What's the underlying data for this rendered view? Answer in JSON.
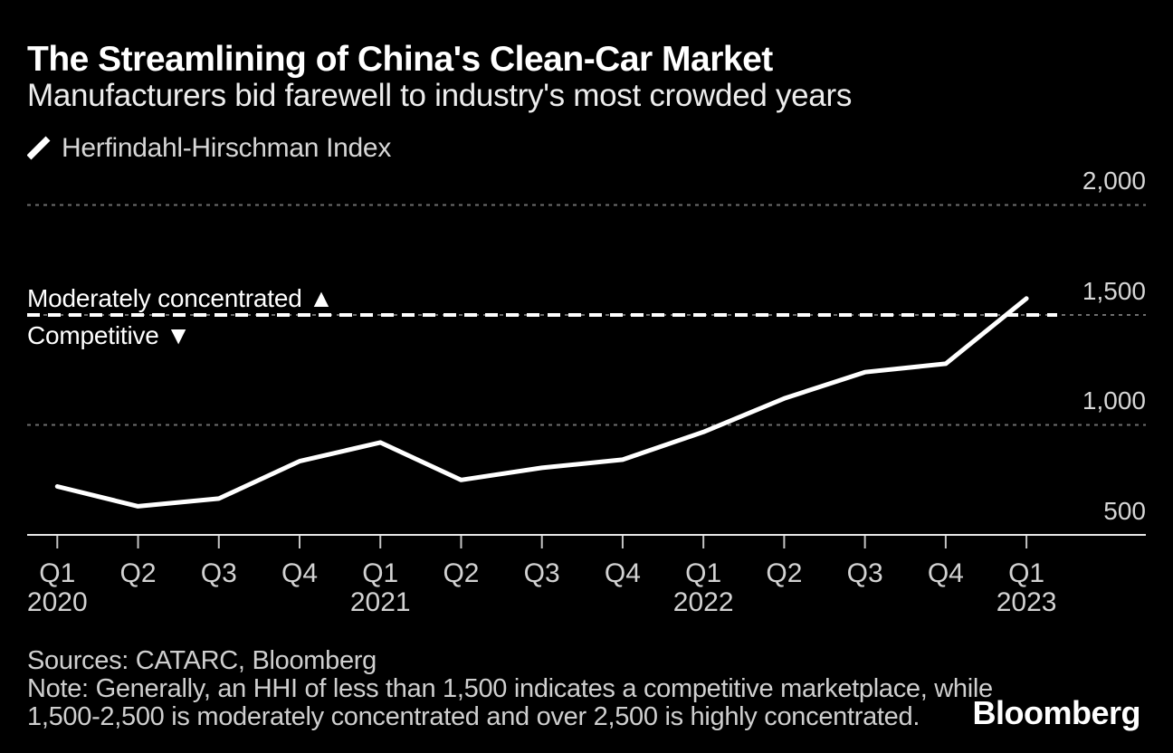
{
  "header": {
    "title": "The Streamlining of China's Clean-Car Market",
    "subtitle": "Manufacturers bid farewell to industry's most crowded years"
  },
  "legend": {
    "marker_icon": "white-diagonal-line-swatch",
    "label": "Herfindahl-Hirschman Index"
  },
  "annotations": {
    "above_threshold": "Moderately concentrated ▲",
    "below_threshold": "Competitive ▼"
  },
  "chart_data": {
    "type": "line",
    "title": "The Streamlining of China's Clean-Car Market",
    "subtitle": "Manufacturers bid farewell to industry's most crowded years",
    "xlabel": "",
    "ylabel": "Herfindahl-Hirschman Index",
    "categories": [
      "Q1 2020",
      "Q2 2020",
      "Q3 2020",
      "Q4 2020",
      "Q1 2021",
      "Q2 2021",
      "Q3 2021",
      "Q4 2021",
      "Q1 2022",
      "Q2 2022",
      "Q3 2022",
      "Q4 2022",
      "Q1 2023"
    ],
    "x_tick_labels": [
      "Q1",
      "Q2",
      "Q3",
      "Q4",
      "Q1",
      "Q2",
      "Q3",
      "Q4",
      "Q1",
      "Q2",
      "Q3",
      "Q4",
      "Q1"
    ],
    "x_year_labels": [
      "2020",
      "",
      "",
      "",
      "2021",
      "",
      "",
      "",
      "2022",
      "",
      "",
      "",
      "2023"
    ],
    "series": [
      {
        "name": "Herfindahl-Hirschman Index",
        "color": "#ffffff",
        "values": [
          720,
          630,
          665,
          835,
          920,
          750,
          805,
          842,
          968,
          1120,
          1240,
          1278,
          1575
        ]
      }
    ],
    "y_ticks": [
      2000,
      1500,
      1000,
      500
    ],
    "y_tick_labels": [
      "2,000",
      "1,500",
      "1,000",
      "500"
    ],
    "ylim": [
      500,
      2100
    ],
    "grid": "horizontal dotted gridlines at 1000, 1500, 2000; solid baseline at 500",
    "legend_position": "top-left",
    "threshold": {
      "value": 1500,
      "style": "white heavy dashed line",
      "label_above": "Moderately concentrated ▲",
      "label_below": "Competitive ▼"
    },
    "colors": {
      "background": "#000000",
      "line": "#ffffff",
      "threshold_line": "#ffffff",
      "gridline": "#6e6e6e",
      "axis_line": "#e8e8e8",
      "tick": "#c4c4c4",
      "tick_label": "#d2d2d2",
      "text": "#ffffff"
    }
  },
  "footer": {
    "sources": "Sources: CATARC, Bloomberg",
    "note_line1": "Note: Generally, an HHI of less than 1,500 indicates a competitive marketplace, while",
    "note_line2": "1,500-2,500 is moderately concentrated and over 2,500 is highly concentrated.",
    "logo": "Bloomberg"
  }
}
